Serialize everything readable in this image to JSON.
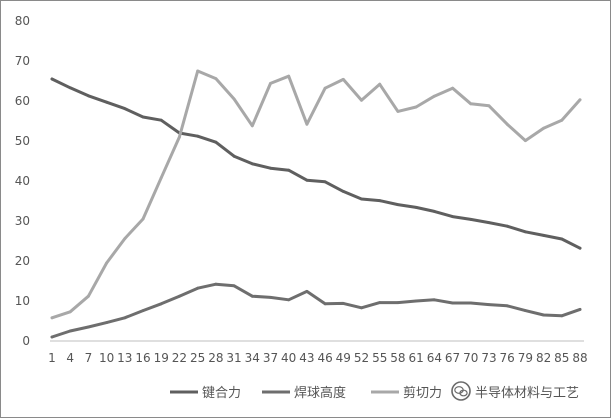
{
  "chart_data": {
    "type": "line",
    "title": "",
    "xlabel": "",
    "ylabel": "",
    "ylim": [
      0,
      80
    ],
    "yticks": [
      0,
      10,
      20,
      30,
      40,
      50,
      60,
      70,
      80
    ],
    "grid": false,
    "legend_position": "bottom",
    "categories": [
      "1",
      "4",
      "7",
      "10",
      "13",
      "16",
      "19",
      "22",
      "25",
      "28",
      "31",
      "34",
      "37",
      "40",
      "43",
      "46",
      "49",
      "52",
      "55",
      "58",
      "61",
      "64",
      "67",
      "70",
      "73",
      "76",
      "79",
      "82",
      "85",
      "88"
    ],
    "series": [
      {
        "name": "键合力",
        "color": "#5f5f5f",
        "values": [
          65.5,
          63.3,
          61.3,
          59.7,
          58.1,
          56.0,
          55.2,
          52.0,
          51.2,
          49.7,
          46.2,
          44.3,
          43.2,
          42.7,
          40.2,
          39.8,
          37.4,
          35.5,
          35.1,
          34.1,
          33.4,
          32.4,
          31.1,
          30.4,
          29.6,
          28.7,
          27.3,
          26.4,
          25.5,
          23.2
        ]
      },
      {
        "name": "焊球高度",
        "color": "#6e6e6e",
        "values": [
          1.0,
          2.5,
          3.5,
          4.6,
          5.8,
          7.6,
          9.3,
          11.2,
          13.2,
          14.2,
          13.8,
          11.2,
          10.9,
          10.3,
          12.4,
          9.3,
          9.4,
          8.3,
          9.6,
          9.6,
          10.0,
          10.3,
          9.5,
          9.5,
          9.1,
          8.8,
          7.6,
          6.5,
          6.3,
          7.9
        ]
      },
      {
        "name": "剪切力",
        "color": "#a8a8a8",
        "values": [
          5.8,
          7.3,
          11.2,
          19.5,
          25.6,
          30.5,
          40.8,
          51.0,
          67.5,
          65.6,
          60.5,
          53.8,
          64.4,
          66.2,
          54.2,
          63.2,
          65.4,
          60.2,
          64.2,
          57.4,
          58.5,
          61.2,
          63.2,
          59.3,
          58.8,
          54.2,
          50.1,
          53.2,
          55.2,
          60.3
        ]
      }
    ]
  },
  "watermark": {
    "text": "半导体材料与工艺",
    "icon": "wechat-icon"
  }
}
